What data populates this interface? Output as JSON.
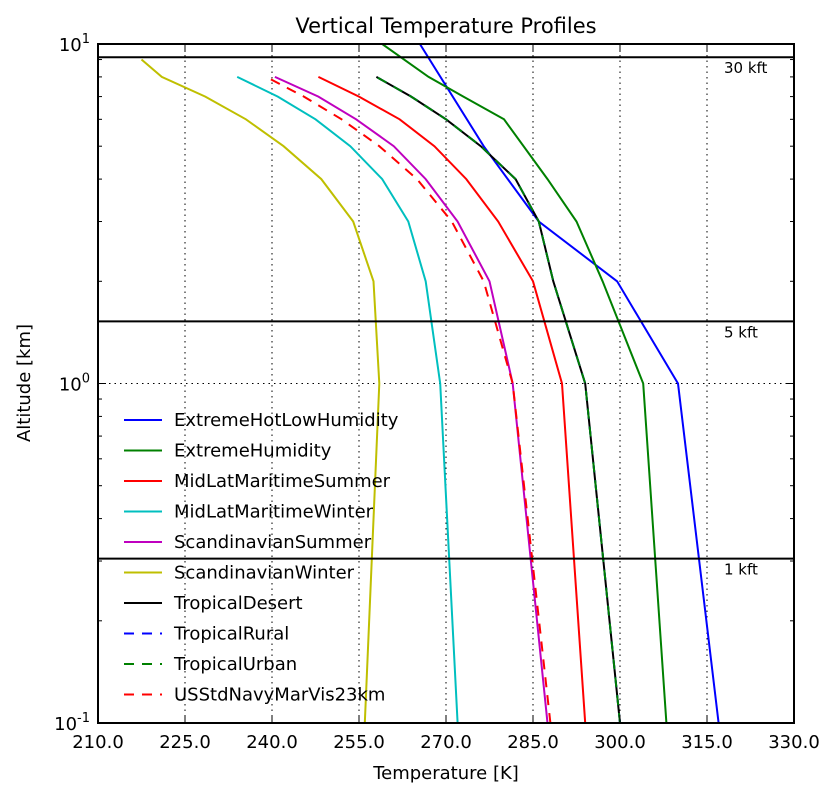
{
  "chart_data": {
    "type": "line",
    "title": "Vertical Temperature Profiles",
    "xlabel": "Temperature [K]",
    "ylabel": "Altitude [km]",
    "xlim": [
      210,
      330
    ],
    "ylim": [
      0.1,
      10
    ],
    "yscale": "log",
    "x_ticks": [
      210,
      225,
      240,
      255,
      270,
      285,
      300,
      315,
      330
    ],
    "x_tick_labels": [
      "210.0",
      "225.0",
      "240.0",
      "255.0",
      "270.0",
      "285.0",
      "300.0",
      "315.0",
      "330.0"
    ],
    "y_ticks": [
      0.1,
      1,
      10
    ],
    "y_tick_labels": [
      {
        "base": "10",
        "exp": "-1"
      },
      {
        "base": "10",
        "exp": "0"
      },
      {
        "base": "10",
        "exp": "1"
      }
    ],
    "grid": "dotted",
    "legend_position": "lower-left",
    "reference_lines": [
      {
        "y": 9.144,
        "label": "30 kft"
      },
      {
        "y": 1.524,
        "label": "5 kft"
      },
      {
        "y": 0.3048,
        "label": "1 kft"
      }
    ],
    "series": [
      {
        "name": "ExtremeHotLowHumidity",
        "color": "#0000ff",
        "dash": "solid",
        "x": [
          317.0,
          310.0,
          299.5,
          286.0,
          276.5,
          265.5
        ],
        "y": [
          0.1,
          1,
          2,
          3,
          5,
          10
        ]
      },
      {
        "name": "ExtremeHumidity",
        "color": "#008000",
        "dash": "solid",
        "x": [
          308.0,
          304.0,
          297.0,
          292.5,
          287.5,
          280.0,
          273.0,
          267.0,
          259.0
        ],
        "y": [
          0.1,
          1,
          2,
          3,
          4,
          6,
          7,
          8,
          10
        ]
      },
      {
        "name": "MidLatMaritimeSummer",
        "color": "#ff0000",
        "dash": "solid",
        "x": [
          294.0,
          290.0,
          285.0,
          279.0,
          273.5,
          268.0,
          262.0,
          255.0,
          248.0
        ],
        "y": [
          0.1,
          1,
          2,
          3,
          4,
          5,
          6,
          7,
          8
        ]
      },
      {
        "name": "MidLatMaritimeWinter",
        "color": "#00bfbf",
        "dash": "solid",
        "x": [
          272.0,
          269.0,
          266.5,
          263.5,
          259.0,
          253.5,
          247.5,
          241.0,
          234.0
        ],
        "y": [
          0.1,
          1,
          2,
          3,
          4,
          5,
          6,
          7,
          8
        ]
      },
      {
        "name": "ScandinavianSummer",
        "color": "#bf00bf",
        "dash": "solid",
        "x": [
          287.5,
          281.5,
          277.5,
          272.0,
          266.5,
          261.0,
          254.5,
          248.0,
          240.5
        ],
        "y": [
          0.1,
          1,
          2,
          3,
          4,
          5,
          6,
          7,
          8
        ]
      },
      {
        "name": "ScandinavianWinter",
        "color": "#bfbf00",
        "dash": "solid",
        "x": [
          256.0,
          258.5,
          257.5,
          254.0,
          248.5,
          242.0,
          235.5,
          228.5,
          221.0,
          217.5
        ],
        "y": [
          0.1,
          1,
          2,
          3,
          4,
          5,
          6,
          7,
          8,
          9
        ]
      },
      {
        "name": "TropicalDesert",
        "color": "#000000",
        "dash": "solid",
        "x": [
          300.0,
          294.0,
          288.5,
          286.0,
          282.0,
          276.0,
          270.0,
          264.0,
          258.0
        ],
        "y": [
          0.1,
          1,
          2,
          3,
          4,
          5,
          6,
          7,
          8
        ]
      },
      {
        "name": "TropicalRural",
        "color": "#0000ff",
        "dash": "dashed",
        "x": [
          300.0,
          294.0,
          288.5,
          286.0,
          282.0,
          276.0,
          270.0,
          264.0,
          258.0
        ],
        "y": [
          0.1,
          1,
          2,
          3,
          4,
          5,
          6,
          7,
          8
        ]
      },
      {
        "name": "TropicalUrban",
        "color": "#008000",
        "dash": "dashed",
        "x": [
          300.0,
          294.0,
          288.5,
          286.0,
          282.0,
          276.0,
          270.0,
          264.0,
          258.0
        ],
        "y": [
          0.1,
          1,
          2,
          3,
          4,
          5,
          6,
          7,
          8
        ]
      },
      {
        "name": "USStdNavyMarVis23km",
        "color": "#ff0000",
        "dash": "dashed",
        "x": [
          288.0,
          281.5,
          276.5,
          271.0,
          265.0,
          258.5,
          252.0,
          245.5,
          239.0
        ],
        "y": [
          0.1,
          1,
          2,
          3,
          4,
          5,
          6,
          7,
          8
        ]
      }
    ]
  }
}
